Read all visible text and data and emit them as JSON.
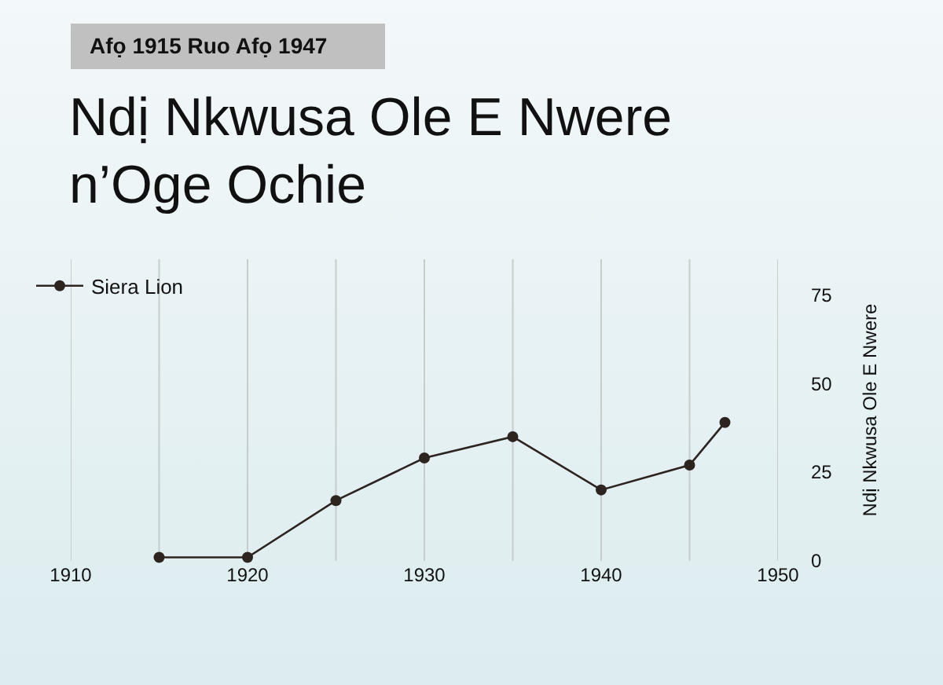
{
  "chart_data": {
    "type": "line",
    "title": "Ndị Nkwusa Ole E Nwere n’Oge Ochie",
    "subtitle": "Afọ 1915 Ruo Afọ 1947",
    "ylabel": "Ndị Nkwusa Ole E Nwere",
    "x": [
      1915,
      1920,
      1925,
      1930,
      1935,
      1940,
      1945,
      1947
    ],
    "series": [
      {
        "name": "Siera Lion",
        "color": "#2d2420",
        "values": [
          1,
          1,
          17,
          29,
          35,
          20,
          27,
          39
        ]
      }
    ],
    "xlim": [
      1910,
      1950
    ],
    "xticks": [
      1910,
      {
        "value": 1915,
        "label": null
      },
      1920,
      {
        "value": 1925,
        "label": null
      },
      1930,
      {
        "value": 1935,
        "label": null
      },
      1940,
      {
        "value": 1945,
        "label": null
      },
      1950
    ],
    "ylim": [
      0,
      85
    ],
    "yticks": [
      0,
      25,
      50,
      75
    ],
    "grid": "x",
    "legend": "top left",
    "marker": "circle",
    "line_style": "solid"
  }
}
